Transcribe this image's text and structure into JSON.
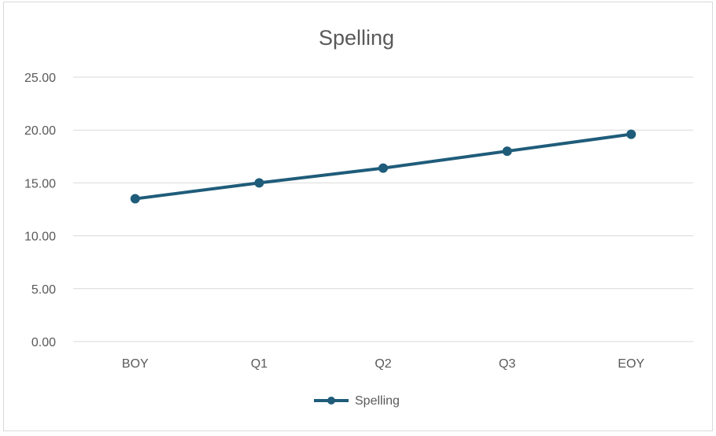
{
  "chart_data": {
    "type": "line",
    "title": "Spelling",
    "xlabel": "",
    "ylabel": "",
    "categories": [
      "BOY",
      "Q1",
      "Q2",
      "Q3",
      "EOY"
    ],
    "series": [
      {
        "name": "Spelling",
        "values": [
          13.5,
          15.0,
          16.4,
          18.0,
          19.6
        ],
        "color": "#1f5c7a"
      }
    ],
    "ylim": [
      0,
      25
    ],
    "ytick_step": 5,
    "ytick_labels": [
      "0.00",
      "5.00",
      "10.00",
      "15.00",
      "20.00",
      "25.00"
    ],
    "grid": true,
    "legend_position": "bottom"
  }
}
